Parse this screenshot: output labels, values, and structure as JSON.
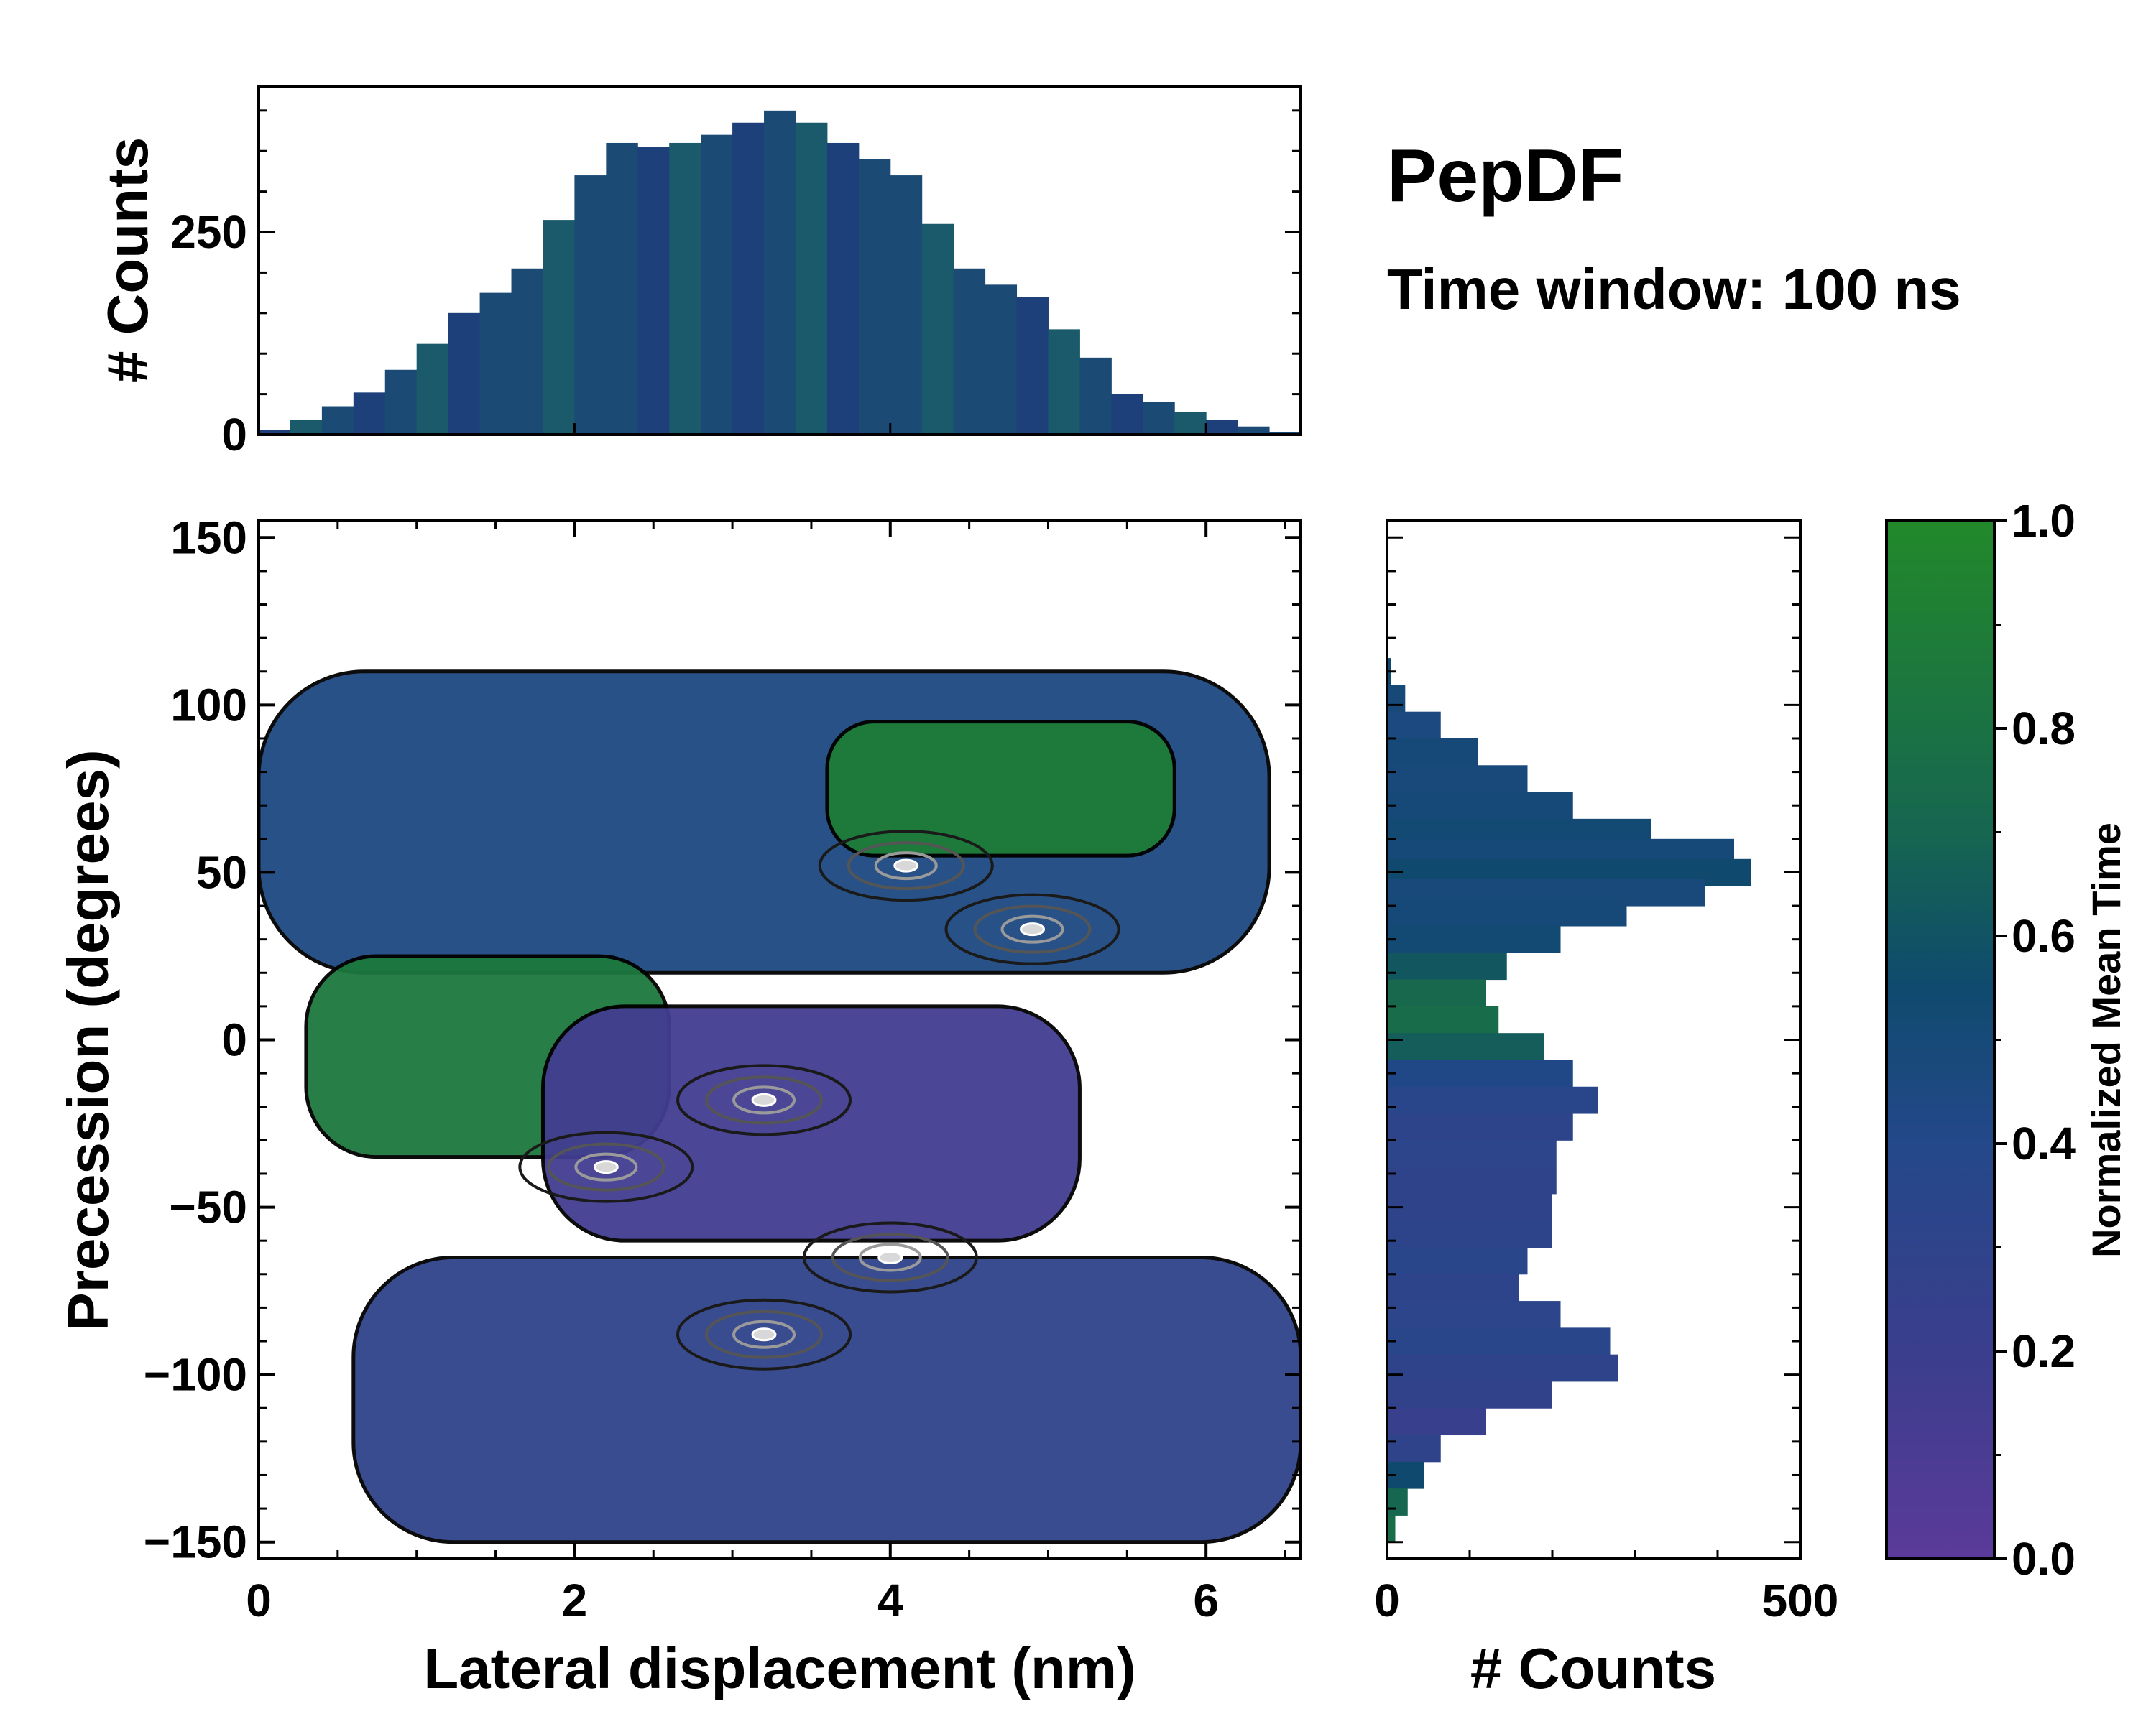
{
  "chart_data": {
    "type": "heatmap",
    "title": "PepDF",
    "subtitle": "Time window: 100 ns",
    "xlabel": "Lateral displacement (nm)",
    "ylabel": "Precession (degrees)",
    "xlim": [
      0,
      6.6
    ],
    "ylim": [
      -155,
      155
    ],
    "xticks": [
      0,
      2,
      4,
      6
    ],
    "xtick_labels": [
      "0",
      "2",
      "4",
      "6"
    ],
    "yticks": [
      150,
      100,
      50,
      0,
      -50,
      -100,
      -150
    ],
    "ytick_labels": [
      "150",
      "100",
      "50",
      "0",
      "−50",
      "−100",
      "−150"
    ],
    "colorbar": {
      "label": "Normalized Mean Time",
      "range": [
        0,
        1
      ],
      "ticks": [
        0.0,
        0.2,
        0.4,
        0.6,
        0.8,
        1.0
      ],
      "tick_labels": [
        "0.0",
        "0.2",
        "0.4",
        "0.6",
        "0.8",
        "1.0"
      ],
      "colors": [
        "#5b3a9a",
        "#3a3e8c",
        "#24488a",
        "#0f4a6e",
        "#166650",
        "#22892a"
      ]
    },
    "regions": [
      {
        "name": "upper band",
        "x_range": [
          0,
          6.4
        ],
        "y_range": [
          20,
          110
        ],
        "mean_time": 0.45
      },
      {
        "name": "upper-right lobe",
        "x_range": [
          3.6,
          5.8
        ],
        "y_range": [
          55,
          95
        ],
        "mean_time": 0.9
      },
      {
        "name": "middle-left lobe",
        "x_range": [
          0.3,
          2.6
        ],
        "y_range": [
          -35,
          25
        ],
        "mean_time": 0.85
      },
      {
        "name": "middle band",
        "x_range": [
          1.8,
          5.2
        ],
        "y_range": [
          -60,
          10
        ],
        "mean_time": 0.15
      },
      {
        "name": "lower band",
        "x_range": [
          0.6,
          6.6
        ],
        "y_range": [
          -150,
          -65
        ],
        "mean_time": 0.3
      }
    ],
    "density_peaks": [
      {
        "x": 4.1,
        "y": 52
      },
      {
        "x": 3.2,
        "y": -18
      },
      {
        "x": 4.0,
        "y": -65
      },
      {
        "x": 3.2,
        "y": -88
      },
      {
        "x": 2.2,
        "y": -38
      },
      {
        "x": 4.9,
        "y": 33
      }
    ],
    "marginal_x": {
      "ylabel": "# Counts",
      "yticks": [
        0,
        250
      ],
      "ytick_labels": [
        "0",
        "250"
      ],
      "ylim": [
        0,
        430
      ],
      "bin_centers": [
        0.1,
        0.3,
        0.5,
        0.7,
        0.9,
        1.1,
        1.3,
        1.5,
        1.7,
        1.9,
        2.1,
        2.3,
        2.5,
        2.7,
        2.9,
        3.1,
        3.3,
        3.5,
        3.7,
        3.9,
        4.1,
        4.3,
        4.5,
        4.7,
        4.9,
        5.1,
        5.3,
        5.5,
        5.7,
        5.9,
        6.1,
        6.3,
        6.5
      ],
      "counts": [
        6,
        18,
        35,
        52,
        80,
        112,
        150,
        175,
        205,
        265,
        320,
        360,
        355,
        360,
        370,
        385,
        400,
        385,
        360,
        340,
        320,
        260,
        205,
        185,
        170,
        130,
        95,
        50,
        40,
        28,
        18,
        10,
        3
      ]
    },
    "marginal_y": {
      "xlabel": "# Counts",
      "xticks": [
        0,
        500
      ],
      "xtick_labels": [
        "0",
        "500"
      ],
      "xlim": [
        0,
        500
      ],
      "bin_centers": [
        110,
        102,
        94,
        86,
        78,
        70,
        62,
        56,
        50,
        44,
        38,
        30,
        22,
        14,
        6,
        -2,
        -10,
        -18,
        -26,
        -34,
        -42,
        -50,
        -58,
        -66,
        -74,
        -82,
        -90,
        -98,
        -106,
        -114,
        -122,
        -130,
        -138,
        -146
      ],
      "counts": [
        5,
        22,
        65,
        110,
        170,
        225,
        320,
        420,
        440,
        385,
        290,
        210,
        145,
        120,
        135,
        190,
        225,
        255,
        225,
        205,
        205,
        200,
        200,
        170,
        160,
        210,
        270,
        280,
        200,
        120,
        65,
        45,
        25,
        10
      ],
      "bar_time": [
        0.55,
        0.5,
        0.45,
        0.5,
        0.48,
        0.5,
        0.52,
        0.5,
        0.55,
        0.48,
        0.5,
        0.52,
        0.62,
        0.72,
        0.75,
        0.65,
        0.42,
        0.35,
        0.32,
        0.33,
        0.3,
        0.3,
        0.32,
        0.35,
        0.32,
        0.33,
        0.35,
        0.3,
        0.28,
        0.22,
        0.3,
        0.55,
        0.7,
        0.75
      ]
    }
  }
}
